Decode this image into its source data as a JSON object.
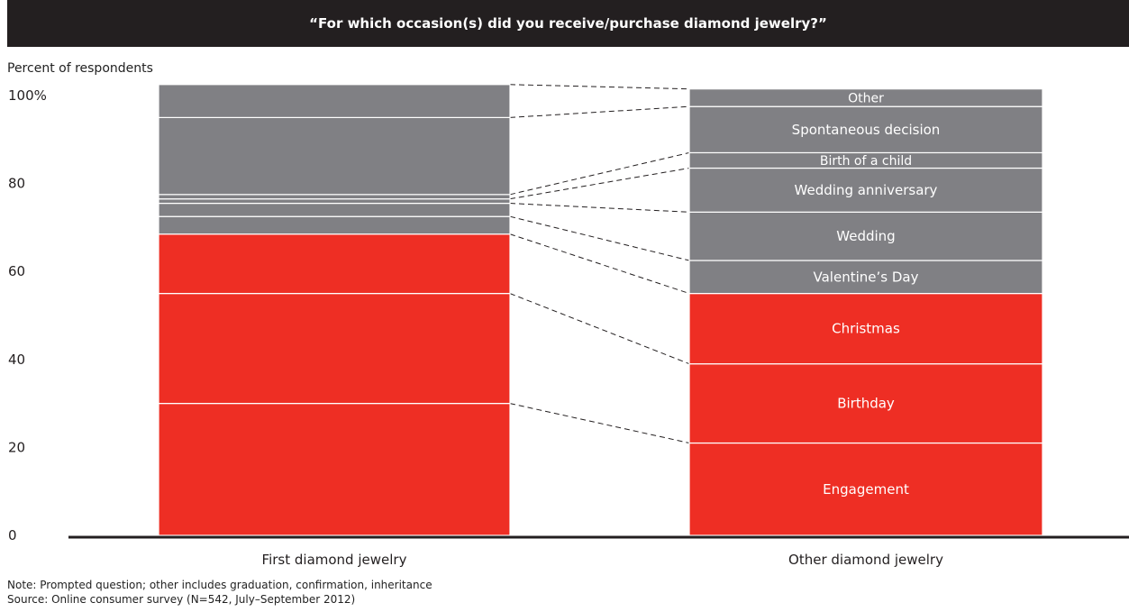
{
  "header": {
    "title": "“For which occasion(s) did you receive/purchase diamond jewelry?”"
  },
  "subtitle": "Percent of respondents",
  "footnotes": {
    "note": "Note: Prompted question; other includes graduation, confirmation, inheritance",
    "source": "Source: Online consumer survey (N=542, July–September 2012)"
  },
  "colors": {
    "red": "#ee2e24",
    "gray": "#808084",
    "title_bg": "#231f20",
    "axis": "#231f20"
  },
  "chart_data": {
    "type": "bar",
    "stacked": true,
    "categories": [
      "First diamond jewelry",
      "Other diamond jewelry"
    ],
    "ylim": [
      0,
      100
    ],
    "y_ticks": [
      0,
      20,
      40,
      60,
      80,
      100
    ],
    "y_tick_labels": [
      "0",
      "20",
      "40",
      "60",
      "80",
      "100%"
    ],
    "series": [
      {
        "name": "Engagement",
        "color": "red",
        "values": [
          30,
          21
        ],
        "label": "Engagement"
      },
      {
        "name": "Birthday",
        "color": "red",
        "values": [
          25,
          18
        ],
        "label": "Birthday"
      },
      {
        "name": "Christmas",
        "color": "red",
        "values": [
          13.5,
          16
        ],
        "label": "Christmas"
      },
      {
        "name": "Valentine’s Day",
        "color": "gray",
        "values": [
          4,
          7.5
        ],
        "label": "Valentine’s Day"
      },
      {
        "name": "Wedding",
        "color": "gray",
        "values": [
          3,
          11
        ],
        "label": "Wedding"
      },
      {
        "name": "Wedding anniversary",
        "color": "gray",
        "values": [
          1,
          10
        ],
        "label": "Wedding anniversary"
      },
      {
        "name": "Birth of a child",
        "color": "gray",
        "values": [
          1,
          3.5
        ],
        "label": "Birth of a child"
      },
      {
        "name": "Spontaneous decision",
        "color": "gray",
        "values": [
          17.5,
          10.5
        ],
        "label": "Spontaneous decision"
      },
      {
        "name": "Other",
        "color": "gray",
        "values": [
          7.5,
          4
        ],
        "label": "Other"
      }
    ],
    "segment_labels_shown_on": "Other diamond jewelry",
    "connector_lines": "dashed"
  }
}
